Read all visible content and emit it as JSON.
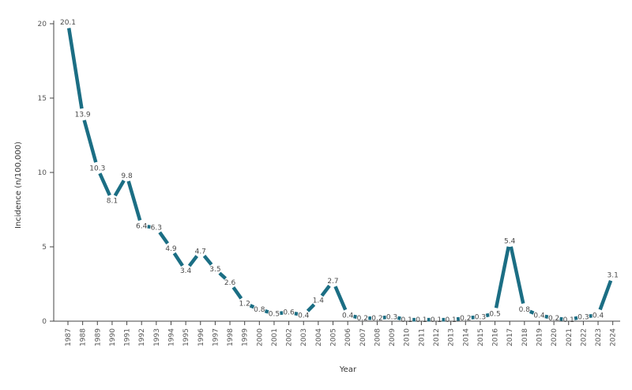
{
  "chart_data": {
    "type": "line",
    "title": "",
    "xlabel": "Year",
    "ylabel": "Incidence (n/100,000)",
    "ylim": [
      0,
      20
    ],
    "yticks": [
      0,
      5,
      10,
      15,
      20
    ],
    "grid": false,
    "legend": "none",
    "colors": {
      "line": "#1b6e84",
      "axis": "#444444",
      "text": "#555555"
    },
    "x": [
      "1987",
      "1988",
      "1989",
      "1990",
      "1991",
      "1992",
      "1993",
      "1994",
      "1995",
      "1996",
      "1997",
      "1998",
      "1999",
      "2000",
      "2001",
      "2002",
      "2003",
      "2004",
      "2005",
      "2006",
      "2007",
      "2008",
      "2009",
      "2010",
      "2011",
      "2012",
      "2013",
      "2014",
      "2015",
      "2016",
      "2017",
      "2018",
      "2019",
      "2020",
      "2021",
      "2022",
      "2023",
      "2024"
    ],
    "series": [
      {
        "values": [
          20.1,
          13.9,
          10.3,
          8.1,
          9.8,
          6.4,
          6.3,
          4.9,
          3.4,
          4.7,
          3.5,
          2.6,
          1.2,
          0.8,
          0.5,
          0.6,
          0.4,
          1.4,
          2.7,
          0.4,
          0.2,
          0.2,
          0.3,
          0.1,
          0.1,
          0.1,
          0.1,
          0.2,
          0.3,
          0.5,
          5.4,
          0.8,
          0.4,
          0.2,
          0.1,
          0.3,
          0.4,
          3.1
        ],
        "labels": [
          "20.1",
          "13.9",
          "10.3",
          "8.1",
          "9.8",
          "6.4",
          "6.3",
          "4.9",
          "3.4",
          "4.7",
          "3.5",
          "2.6",
          "1.2",
          "0.8",
          "0.5",
          "0.6",
          "0.4",
          "1.4",
          "2.7",
          "0.4",
          "0.2",
          "0.2",
          "0.3",
          "0.1",
          "0.1",
          "0.1",
          "0.1",
          "0.2",
          "0.3",
          "0.5",
          "5.4",
          "0.8",
          "0.4",
          "0.2",
          "0.1",
          "0.3",
          "0.4",
          "3.1"
        ]
      }
    ]
  }
}
